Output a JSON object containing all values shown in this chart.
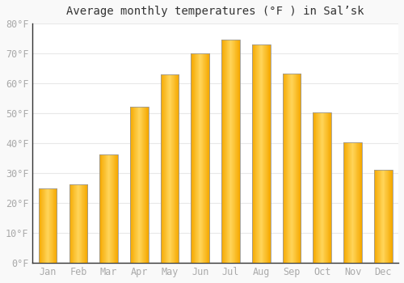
{
  "title": "Average monthly temperatures (°F ) in Salʼsk",
  "months": [
    "Jan",
    "Feb",
    "Mar",
    "Apr",
    "May",
    "Jun",
    "Jul",
    "Aug",
    "Sep",
    "Oct",
    "Nov",
    "Dec"
  ],
  "values": [
    24.8,
    26.2,
    36.3,
    52.2,
    63.1,
    70.0,
    74.5,
    72.9,
    63.3,
    50.2,
    40.2,
    31.1
  ],
  "bar_color_center": "#FFD55A",
  "bar_color_edge": "#F5A800",
  "bar_border_color": "#999999",
  "background_color": "#f9f9f9",
  "plot_bg_color": "#ffffff",
  "grid_color": "#e8e8e8",
  "ylim": [
    0,
    80
  ],
  "yticks": [
    0,
    10,
    20,
    30,
    40,
    50,
    60,
    70,
    80
  ],
  "ytick_labels": [
    "0°F",
    "10°F",
    "20°F",
    "30°F",
    "40°F",
    "50°F",
    "60°F",
    "70°F",
    "80°F"
  ],
  "title_fontsize": 10,
  "tick_fontsize": 8.5,
  "tick_font_color": "#aaaaaa",
  "axis_color": "#333333",
  "bar_width": 0.6
}
